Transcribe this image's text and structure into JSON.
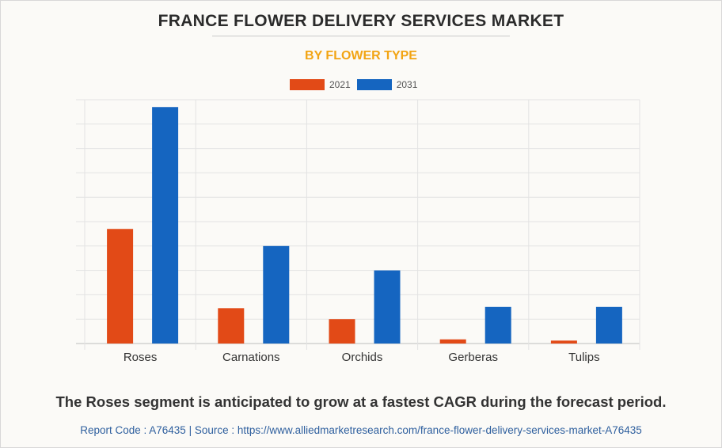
{
  "title": "FRANCE FLOWER DELIVERY SERVICES MARKET",
  "subtitle": "BY FLOWER TYPE",
  "legend": [
    {
      "label": "2021",
      "color": "#e24a17"
    },
    {
      "label": "2031",
      "color": "#1565c0"
    }
  ],
  "footer": {
    "headline": "The Roses segment is anticipated to grow at a fastest CAGR during the forecast period.",
    "source": "Report Code : A76435  |  Source : https://www.alliedmarketresearch.com/france-flower-delivery-services-market-A76435"
  },
  "chart_data": {
    "type": "bar",
    "title": "FRANCE FLOWER DELIVERY SERVICES MARKET",
    "subtitle": "BY FLOWER TYPE",
    "categories": [
      "Roses",
      "Carnations",
      "Orchids",
      "Gerberas",
      "Tulips"
    ],
    "series": [
      {
        "name": "2021",
        "color": "#e24a17",
        "values": [
          4.7,
          1.45,
          1.0,
          0.17,
          0.12
        ]
      },
      {
        "name": "2031",
        "color": "#1565c0",
        "values": [
          9.7,
          4.0,
          3.0,
          1.5,
          1.5
        ]
      }
    ],
    "ylim": [
      0,
      10
    ],
    "grid": true,
    "legend_position": "top-center",
    "y_tick_labels_shown": false
  }
}
